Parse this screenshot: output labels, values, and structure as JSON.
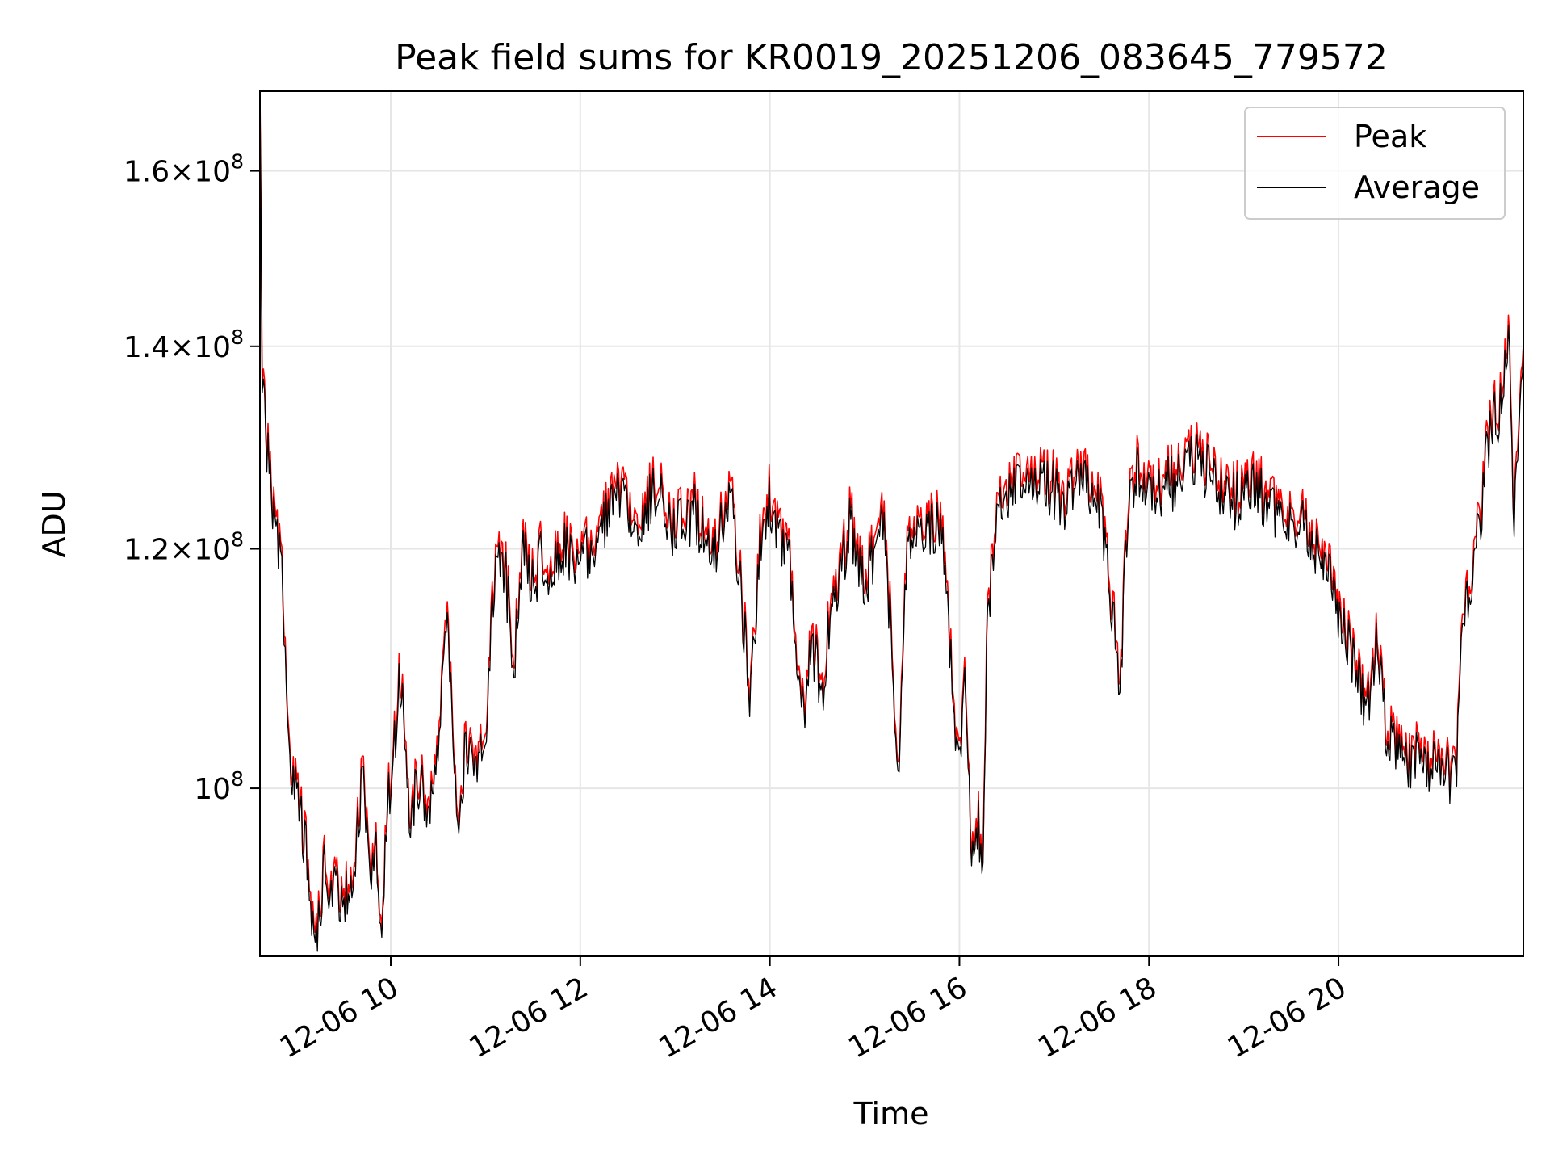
{
  "chart_data": {
    "type": "line",
    "title": "Peak field sums for KR0019_20251206_083645_779572",
    "xlabel": "Time",
    "ylabel": "ADU",
    "yscale": "log",
    "x_unit": "hours (time of day, 2025-12-06)",
    "xlim": [
      8.62,
      21.95
    ],
    "ylim": [
      88000000,
      170000000
    ],
    "grid": true,
    "legend_position": "upper right",
    "x_ticks": [
      {
        "value": 10,
        "label": "12-06 10"
      },
      {
        "value": 12,
        "label": "12-06 12"
      },
      {
        "value": 14,
        "label": "12-06 14"
      },
      {
        "value": 16,
        "label": "12-06 16"
      },
      {
        "value": 18,
        "label": "12-06 18"
      },
      {
        "value": 20,
        "label": "12-06 20"
      }
    ],
    "y_ticks": [
      {
        "value": 100000000,
        "mantissa": "",
        "exponent": "8"
      },
      {
        "value": 120000000,
        "mantissa": "1.2",
        "exponent": "8"
      },
      {
        "value": 140000000,
        "mantissa": "1.4",
        "exponent": "8"
      },
      {
        "value": 160000000,
        "mantissa": "1.6",
        "exponent": "8"
      }
    ],
    "colors": {
      "peak": "#ff0000",
      "average": "#000000",
      "grid": "#e6e6e6"
    },
    "series": [
      {
        "name": "Peak",
        "color": "#ff0000",
        "anchor_x": [
          8.62,
          8.64,
          8.66,
          8.7,
          8.75,
          8.8,
          8.85,
          8.92,
          9.0,
          9.1,
          9.2,
          9.3,
          9.35,
          9.4,
          9.5,
          9.6,
          9.7,
          9.8,
          9.85,
          9.9,
          9.92,
          9.97,
          10.05,
          10.1,
          10.2,
          10.3,
          10.4,
          10.5,
          10.6,
          10.7,
          10.75,
          10.8,
          10.9,
          11.0,
          11.1,
          11.2,
          11.3,
          11.4,
          11.5,
          11.6,
          11.7,
          11.8,
          12.0,
          12.2,
          12.4,
          12.6,
          12.8,
          13.0,
          13.2,
          13.4,
          13.6,
          13.8,
          13.9,
          14.0,
          14.2,
          14.35,
          14.45,
          14.55,
          14.65,
          14.75,
          14.85,
          15.0,
          15.2,
          15.3,
          15.35,
          15.45,
          15.6,
          15.8,
          16.0,
          16.05,
          16.1,
          16.15,
          16.2,
          16.25,
          16.3,
          16.35,
          16.4,
          16.5,
          16.7,
          16.9,
          17.1,
          17.3,
          17.5,
          17.7,
          17.75,
          17.8,
          17.9,
          18.1,
          18.3,
          18.5,
          18.7,
          18.9,
          19.1,
          19.3,
          19.5,
          19.7,
          19.9,
          20.1,
          20.3,
          20.4,
          20.5,
          20.6,
          20.7,
          20.8,
          21.0,
          21.1,
          21.2,
          21.25,
          21.3,
          21.4,
          21.5,
          21.6,
          21.7,
          21.72,
          21.75,
          21.8,
          21.85,
          21.95
        ],
        "anchor_y": [
          170000000,
          139000000,
          135000000,
          129000000,
          125000000,
          121000000,
          118000000,
          104000000,
          100000000,
          96000000,
          88800000,
          94500000,
          92000000,
          93000000,
          91500000,
          94000000,
          101000000,
          93500000,
          96000000,
          88000000,
          92000000,
          99000000,
          105000000,
          109000000,
          98000000,
          101000000,
          98000000,
          104000000,
          114000000,
          98000000,
          100000000,
          104000000,
          102000000,
          105000000,
          118000000,
          119000000,
          110000000,
          121000000,
          117000000,
          120000000,
          118000000,
          121000000,
          119000000,
          122000000,
          125000000,
          123000000,
          126000000,
          122000000,
          124000000,
          120000000,
          125000000,
          107000000,
          121000000,
          125000000,
          119000000,
          106000000,
          112000000,
          108000000,
          115000000,
          118000000,
          123000000,
          117000000,
          123000000,
          110000000,
          100500000,
          121000000,
          122000000,
          123000000,
          101000000,
          110000000,
          100000000,
          94000000,
          98000000,
          93000000,
          116000000,
          118000000,
          126000000,
          125000000,
          127000000,
          127000000,
          125000000,
          128000000,
          124000000,
          108000000,
          120000000,
          126000000,
          128000000,
          126000000,
          127000000,
          129000000,
          127000000,
          125000000,
          127000000,
          124000000,
          123000000,
          122000000,
          118000000,
          112000000,
          106000000,
          112000000,
          105000000,
          104000000,
          102000000,
          103000000,
          102000000,
          102000000,
          101000000,
          103000000,
          112000000,
          118000000,
          124000000,
          132000000,
          134000000,
          135000000,
          137000000,
          142000000,
          122000000,
          140000000,
          141000000,
          140000000
        ]
      },
      {
        "name": "Average",
        "color": "#000000",
        "anchor_x": [
          8.62,
          8.64,
          8.66,
          8.7,
          8.75,
          8.8,
          8.85,
          8.92,
          9.0,
          9.1,
          9.2,
          9.3,
          9.35,
          9.4,
          9.5,
          9.6,
          9.7,
          9.8,
          9.85,
          9.9,
          9.92,
          9.97,
          10.05,
          10.1,
          10.2,
          10.3,
          10.4,
          10.5,
          10.6,
          10.7,
          10.75,
          10.8,
          10.9,
          11.0,
          11.1,
          11.2,
          11.3,
          11.4,
          11.5,
          11.6,
          11.7,
          11.8,
          12.0,
          12.2,
          12.4,
          12.6,
          12.8,
          13.0,
          13.2,
          13.4,
          13.6,
          13.8,
          13.9,
          14.0,
          14.2,
          14.35,
          14.45,
          14.55,
          14.65,
          14.75,
          14.85,
          15.0,
          15.2,
          15.3,
          15.35,
          15.45,
          15.6,
          15.8,
          16.0,
          16.05,
          16.1,
          16.15,
          16.2,
          16.25,
          16.3,
          16.35,
          16.4,
          16.5,
          16.7,
          16.9,
          17.1,
          17.3,
          17.5,
          17.7,
          17.75,
          17.8,
          17.9,
          18.1,
          18.3,
          18.5,
          18.7,
          18.9,
          19.1,
          19.3,
          19.5,
          19.7,
          19.9,
          20.1,
          20.3,
          20.4,
          20.5,
          20.6,
          20.7,
          20.8,
          21.0,
          21.1,
          21.2,
          21.25,
          21.3,
          21.4,
          21.5,
          21.6,
          21.7,
          21.72,
          21.75,
          21.8,
          21.85,
          21.95
        ],
        "anchor_y": [
          169000000,
          138500000,
          134500000,
          128600000,
          124600000,
          120600000,
          117600000,
          103700000,
          99700000,
          95700000,
          88500000,
          94200000,
          91700000,
          92700000,
          91200000,
          93700000,
          100600000,
          93200000,
          95700000,
          87800000,
          91700000,
          98700000,
          104600000,
          108600000,
          97700000,
          100600000,
          97700000,
          103600000,
          113500000,
          97700000,
          99700000,
          103600000,
          101600000,
          104600000,
          117500000,
          118500000,
          109600000,
          120500000,
          116500000,
          119500000,
          117500000,
          120500000,
          118500000,
          121500000,
          124400000,
          122400000,
          125400000,
          121500000,
          123400000,
          119500000,
          124400000,
          106700000,
          120500000,
          124400000,
          118500000,
          105700000,
          111600000,
          107600000,
          114500000,
          117500000,
          122400000,
          116500000,
          122400000,
          109600000,
          100200000,
          120500000,
          121500000,
          122400000,
          100700000,
          109600000,
          99700000,
          93700000,
          97700000,
          92700000,
          115500000,
          117500000,
          125400000,
          124400000,
          126400000,
          126400000,
          124400000,
          127400000,
          123400000,
          107600000,
          119500000,
          125400000,
          127400000,
          125400000,
          126400000,
          128400000,
          126400000,
          124400000,
          126400000,
          123400000,
          122400000,
          121500000,
          117500000,
          111600000,
          105700000,
          111600000,
          104600000,
          103600000,
          101600000,
          102600000,
          101600000,
          101600000,
          100700000,
          102600000,
          111600000,
          117500000,
          123400000,
          131400000,
          133400000,
          134400000,
          136400000,
          141400000,
          121500000,
          139400000,
          140400000,
          139400000
        ]
      }
    ]
  }
}
